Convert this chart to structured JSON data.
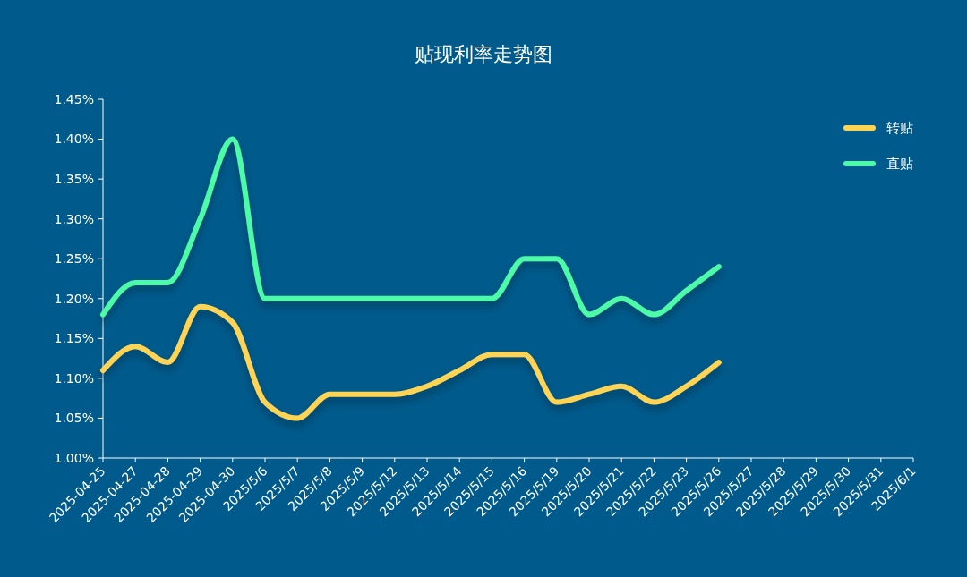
{
  "chart_data": {
    "type": "line",
    "title": "贴现利率走势图",
    "categories": [
      "2025-04-25",
      "2025-04-27",
      "2025-04-28",
      "2025-04-29",
      "2025-04-30",
      "2025/5/6",
      "2025/5/7",
      "2025/5/8",
      "2025/5/9",
      "2025/5/12",
      "2025/5/13",
      "2025/5/14",
      "2025/5/15",
      "2025/5/16",
      "2025/5/19",
      "2025/5/20",
      "2025/5/21",
      "2025/5/22",
      "2025/5/23",
      "2025/5/26",
      "2025/5/27",
      "2025/5/28",
      "2025/5/29",
      "2025/5/30",
      "2025/5/31",
      "2025/6/1"
    ],
    "series": [
      {
        "name": "转贴",
        "color": "#ffd454",
        "values": [
          1.11,
          1.14,
          1.12,
          1.19,
          1.17,
          1.07,
          1.05,
          1.08,
          1.08,
          1.08,
          1.09,
          1.11,
          1.13,
          1.13,
          1.07,
          1.08,
          1.09,
          1.07,
          1.09,
          1.12,
          null,
          null,
          null,
          null,
          null,
          null
        ]
      },
      {
        "name": "直贴",
        "color": "#4dfaa8",
        "values": [
          1.18,
          1.22,
          1.22,
          1.3,
          1.4,
          1.2,
          1.2,
          1.2,
          1.2,
          1.2,
          1.2,
          1.2,
          1.2,
          1.25,
          1.25,
          1.18,
          1.2,
          1.18,
          1.21,
          1.24,
          null,
          null,
          null,
          null,
          null,
          null
        ]
      }
    ],
    "ylim": [
      1.0,
      1.45
    ],
    "yticks": [
      {
        "value": 1.0,
        "label": "1.00%"
      },
      {
        "value": 1.05,
        "label": "1.05%"
      },
      {
        "value": 1.1,
        "label": "1.10%"
      },
      {
        "value": 1.15,
        "label": "1.15%"
      },
      {
        "value": 1.2,
        "label": "1.20%"
      },
      {
        "value": 1.25,
        "label": "1.25%"
      },
      {
        "value": 1.3,
        "label": "1.30%"
      },
      {
        "value": 1.35,
        "label": "1.35%"
      },
      {
        "value": 1.4,
        "label": "1.40%"
      },
      {
        "value": 1.45,
        "label": "1.45%"
      }
    ],
    "grid": false,
    "legend": "top right",
    "marker": "none",
    "line_style": "solid"
  }
}
